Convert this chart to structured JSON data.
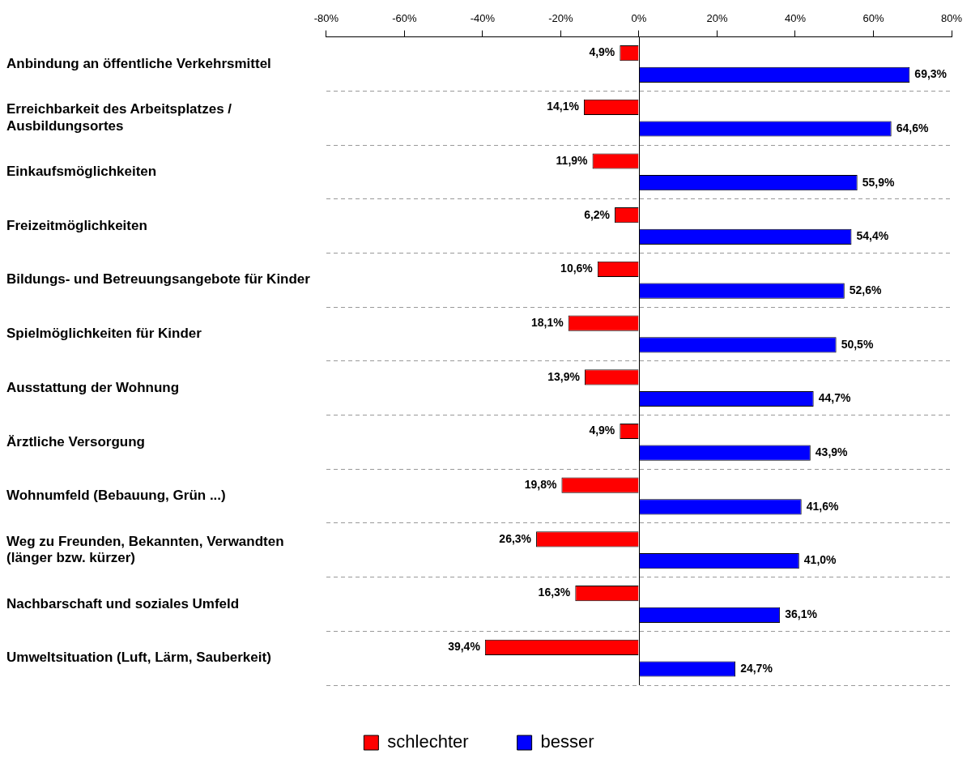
{
  "chart_data": {
    "type": "bar",
    "orientation": "horizontal",
    "categories": [
      "Anbindung an öffentliche Verkehrsmittel",
      "Erreichbarkeit des Arbeitsplatzes /\nAusbildungsortes",
      "Einkaufsmöglichkeiten",
      "Freizeitmöglichkeiten",
      "Bildungs- und Betreuungsangebote für Kinder",
      "Spielmöglichkeiten für Kinder",
      "Ausstattung der Wohnung",
      "Ärztliche Versorgung",
      "Wohnumfeld (Bebauung, Grün ...)",
      "Weg zu Freunden, Bekannten, Verwandten\n(länger bzw. kürzer)",
      "Nachbarschaft und soziales Umfeld",
      "Umweltsituation (Luft, Lärm, Sauberkeit)"
    ],
    "series": [
      {
        "name": "schlechter",
        "color": "#ff0000",
        "values": [
          4.9,
          14.1,
          11.9,
          6.2,
          10.6,
          18.1,
          13.9,
          4.9,
          19.8,
          26.3,
          16.3,
          39.4
        ],
        "base": [
          -4.9,
          -14.1,
          -11.9,
          -6.2,
          -10.6,
          -18.1,
          -13.9,
          -4.9,
          -19.8,
          -26.3,
          -16.3,
          -39.4
        ],
        "value_labels": [
          "4,9%",
          "14,1%",
          "11,9%",
          "6,2%",
          "10,6%",
          "18,1%",
          "13,9%",
          "4,9%",
          "19,8%",
          "26,3%",
          "16,3%",
          "39,4%"
        ]
      },
      {
        "name": "besser",
        "color": "#0000ff",
        "values": [
          69.3,
          64.6,
          55.9,
          54.4,
          52.6,
          50.5,
          44.7,
          43.9,
          41.6,
          41.0,
          36.1,
          24.7
        ],
        "value_labels": [
          "69,3%",
          "64,6%",
          "55,9%",
          "54,4%",
          "52,6%",
          "50,5%",
          "44,7%",
          "43,9%",
          "41,6%",
          "41,0%",
          "36,1%",
          "24,7%"
        ]
      }
    ],
    "xlim": [
      -80,
      80
    ],
    "xticks": [
      {
        "value": -80,
        "label": "-80%"
      },
      {
        "value": -60,
        "label": "-60%"
      },
      {
        "value": -40,
        "label": "-40%"
      },
      {
        "value": -20,
        "label": "-20%"
      },
      {
        "value": 0,
        "label": "0%"
      },
      {
        "value": 20,
        "label": "20%"
      },
      {
        "value": 40,
        "label": "40%"
      },
      {
        "value": 60,
        "label": "60%"
      },
      {
        "value": 80,
        "label": "80%"
      }
    ],
    "grid": "y",
    "line_style": "dashed",
    "legend": "bottom"
  }
}
